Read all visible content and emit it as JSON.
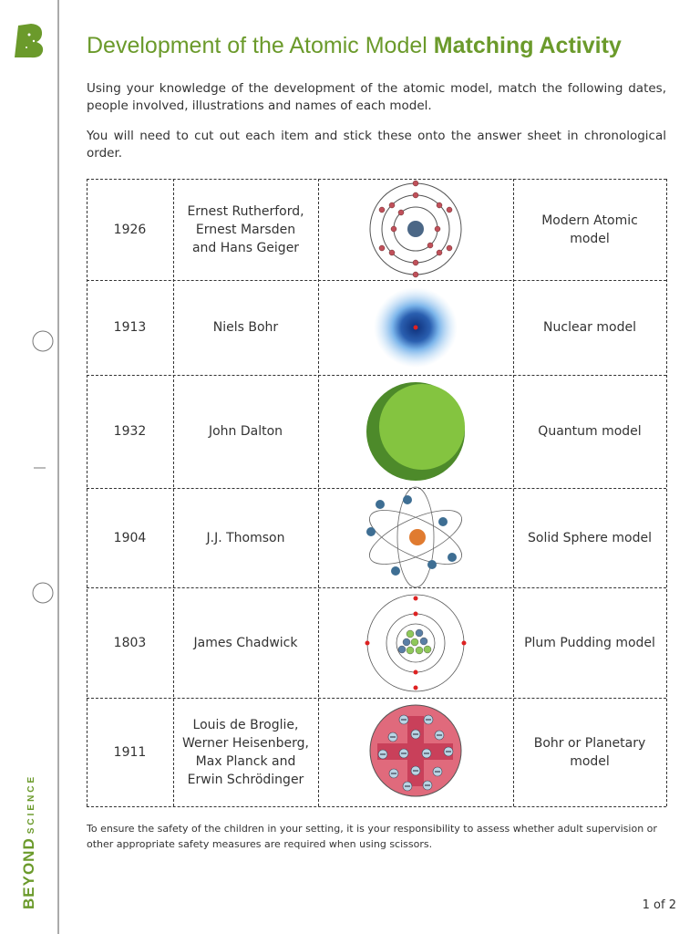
{
  "header": {
    "title_main": "Development of the Atomic Model",
    "title_bold": "Matching Activity"
  },
  "intro": [
    "Using your knowledge of the development of the atomic model, match the following dates, people involved, illustrations and names of each model.",
    "You will need to cut out each item and stick these onto the answer sheet in chronological order."
  ],
  "table": {
    "rows": [
      [
        "1926",
        "Ernest Rutherford, Ernest Marsden and Hans Geiger",
        "Modern Atomic model"
      ],
      [
        "1913",
        "Niels Bohr",
        "Nuclear model"
      ],
      [
        "1932",
        "John Dalton",
        "Quantum model"
      ],
      [
        "1904",
        "J.J. Thomson",
        "Solid Sphere model"
      ],
      [
        "1803",
        "James Chadwick",
        "Plum Pudding model"
      ],
      [
        "1911",
        "Louis de Broglie, Werner Heisenberg, Max Planck and Erwin Schrödinger",
        "Bohr or Planetary model"
      ]
    ]
  },
  "footer": {
    "note": "To ensure the safety of the children in your setting, it is your responsibility to assess whether adult supervision or other appropriate safety measures are required when using scissors.",
    "page": "1 of 2",
    "brand": "BEYOND",
    "brand_sub": "SCIENCE"
  }
}
